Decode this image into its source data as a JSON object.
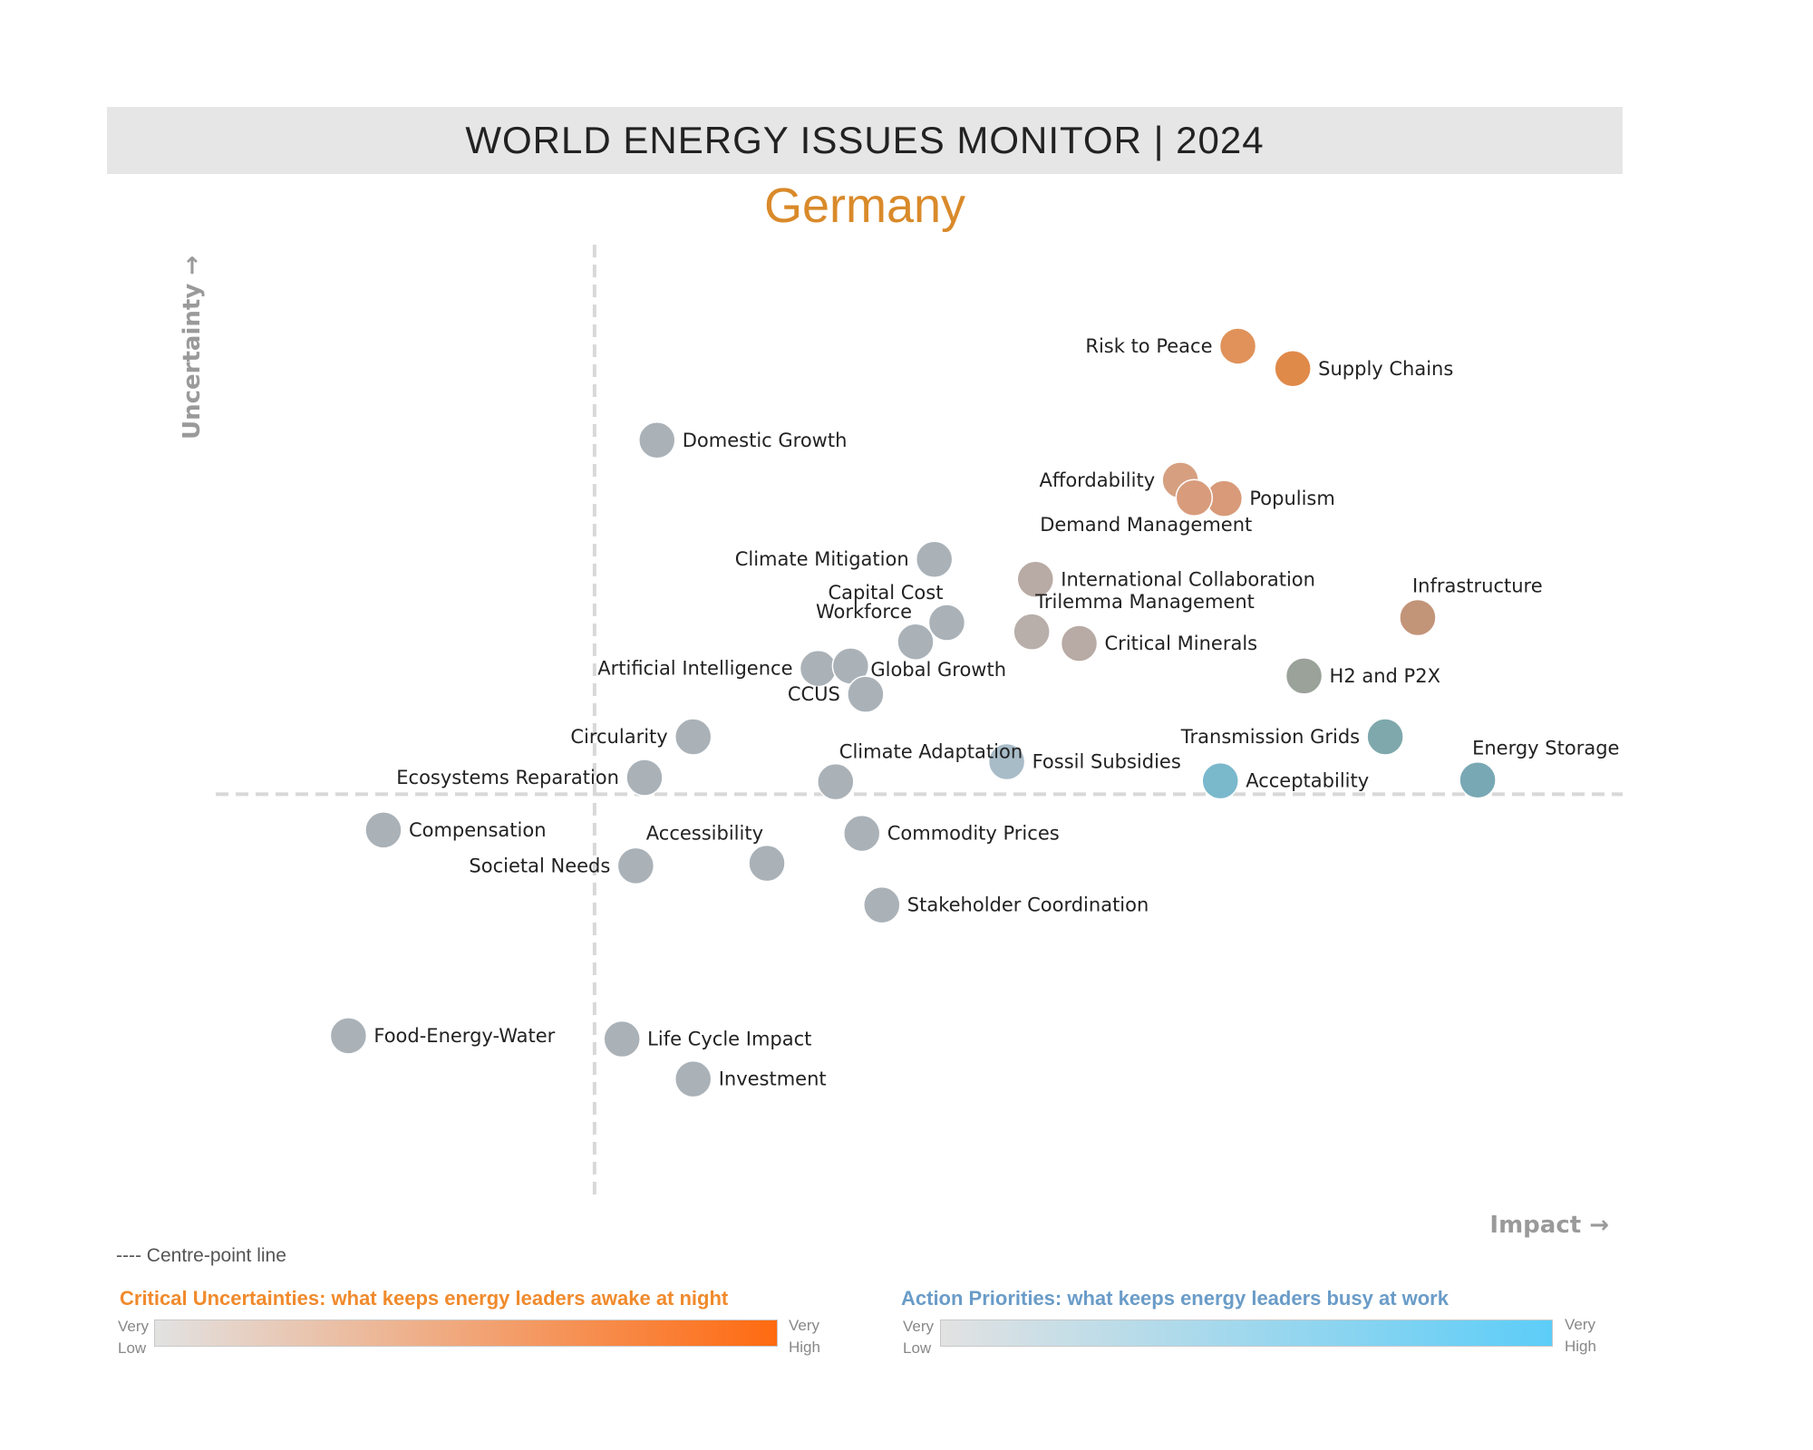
{
  "header": {
    "title": "WORLD ENERGY ISSUES MONITOR | 2024",
    "subtitle": "Germany"
  },
  "colors": {
    "high_uncertainty": "#e08a4a",
    "high_priority": "#5ab4d2",
    "neutral": "#aab2b8"
  },
  "chart_data": {
    "type": "scatter",
    "xlabel": "Impact →",
    "ylabel": "Uncertainty →",
    "xlim": [
      0,
      100
    ],
    "ylim": [
      0,
      100
    ],
    "centre_x": 24.3,
    "centre_y": 41.2,
    "grid": false,
    "points": [
      {
        "label": "Risk to Peace",
        "x": 75.8,
        "y": 95.0,
        "color": "#e0925a",
        "label_side": "left"
      },
      {
        "label": "Supply Chains",
        "x": 80.2,
        "y": 92.3,
        "color": "#e08a4a",
        "label_side": "right"
      },
      {
        "label": "Domestic Growth",
        "x": 29.3,
        "y": 83.7,
        "color": "#aab2b8",
        "label_side": "right"
      },
      {
        "label": "Affordability",
        "x": 71.2,
        "y": 78.9,
        "color": "#d6a080",
        "label_side": "left"
      },
      {
        "label": "Populism",
        "x": 74.7,
        "y": 76.7,
        "color": "#d89a78",
        "label_side": "right"
      },
      {
        "label": "Demand Management",
        "x": 72.3,
        "y": 76.8,
        "color": "#d89c7c",
        "label_side": "below-left"
      },
      {
        "label": "Climate Mitigation",
        "x": 51.5,
        "y": 69.4,
        "color": "#aab2b8",
        "label_side": "left"
      },
      {
        "label": "International Collaboration",
        "x": 59.6,
        "y": 67.0,
        "color": "#b8aaa4",
        "label_side": "right"
      },
      {
        "label": "Infrastructure",
        "x": 90.2,
        "y": 62.4,
        "color": "#c29478",
        "label_side": "above"
      },
      {
        "label": "Capital Cost",
        "x": 52.5,
        "y": 61.8,
        "color": "#aab2b8",
        "label_side": "above-left"
      },
      {
        "label": "Trilemma Management",
        "x": 59.3,
        "y": 60.7,
        "color": "#b8aeaa",
        "label_side": "above-right"
      },
      {
        "label": "Workforce",
        "x": 50.0,
        "y": 59.5,
        "color": "#aab2b8",
        "label_side": "above-left"
      },
      {
        "label": "Critical Minerals",
        "x": 63.1,
        "y": 59.3,
        "color": "#b8aaa4",
        "label_side": "right"
      },
      {
        "label": "Artificial Intelligence",
        "x": 42.2,
        "y": 56.3,
        "color": "#aab2b8",
        "label_side": "left"
      },
      {
        "label": "Global Growth",
        "x": 44.8,
        "y": 56.6,
        "color": "#aab2b8",
        "label_side": "below-right"
      },
      {
        "label": "H2 and P2X",
        "x": 81.1,
        "y": 55.4,
        "color": "#9aa29a",
        "label_side": "right"
      },
      {
        "label": "CCUS",
        "x": 46.0,
        "y": 53.2,
        "color": "#aab2b8",
        "label_side": "left"
      },
      {
        "label": "Transmission Grids",
        "x": 87.6,
        "y": 48.1,
        "color": "#7ea8ac",
        "label_side": "left"
      },
      {
        "label": "Circularity",
        "x": 32.2,
        "y": 48.1,
        "color": "#aab2b8",
        "label_side": "left"
      },
      {
        "label": "Climate Adaptation",
        "x": 43.6,
        "y": 42.7,
        "color": "#aab2b8",
        "label_side": "above-right"
      },
      {
        "label": "Fossil Subsidies",
        "x": 57.3,
        "y": 45.1,
        "color": "#a8bcc8",
        "label_side": "right"
      },
      {
        "label": "Energy Storage",
        "x": 95.0,
        "y": 42.9,
        "color": "#78a8b4",
        "label_side": "above"
      },
      {
        "label": "Acceptability",
        "x": 74.4,
        "y": 42.8,
        "color": "#7ab8cc",
        "label_side": "right"
      },
      {
        "label": "Ecosystems Reparation",
        "x": 28.3,
        "y": 43.2,
        "color": "#aab2b8",
        "label_side": "left"
      },
      {
        "label": "Compensation",
        "x": 7.4,
        "y": 36.9,
        "color": "#aab2b8",
        "label_side": "right"
      },
      {
        "label": "Accessibility",
        "x": 38.1,
        "y": 32.9,
        "color": "#aab2b8",
        "label_side": "above-left"
      },
      {
        "label": "Commodity Prices",
        "x": 45.7,
        "y": 36.5,
        "color": "#aab2b8",
        "label_side": "right"
      },
      {
        "label": "Societal Needs",
        "x": 27.6,
        "y": 32.6,
        "color": "#aab2b8",
        "label_side": "left"
      },
      {
        "label": "Stakeholder Coordination",
        "x": 47.3,
        "y": 27.9,
        "color": "#aab2b8",
        "label_side": "right"
      },
      {
        "label": "Food-Energy-Water",
        "x": 4.6,
        "y": 12.2,
        "color": "#aab2b8",
        "label_side": "right"
      },
      {
        "label": "Life Cycle Impact",
        "x": 26.5,
        "y": 11.8,
        "color": "#aab2b8",
        "label_side": "right"
      },
      {
        "label": "Investment",
        "x": 32.2,
        "y": 7.0,
        "color": "#aab2b8",
        "label_side": "right"
      }
    ]
  },
  "legend": {
    "centre_line": "---- Centre-point line",
    "uncertainty_title": "Critical Uncertainties: what keeps energy leaders awake at night",
    "priority_title": "Action Priorities: what keeps energy leaders busy at work",
    "very": "Very",
    "low": "Low",
    "high": "High"
  }
}
